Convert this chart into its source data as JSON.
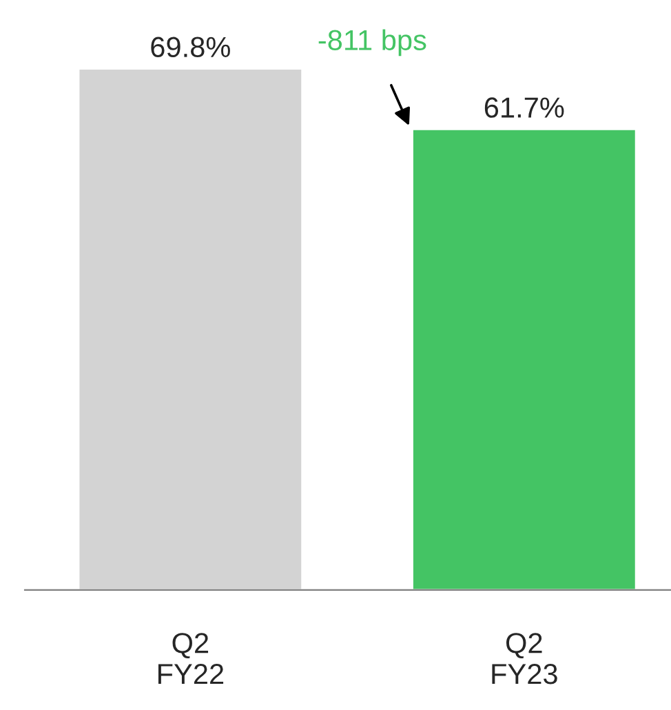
{
  "chart_data": {
    "type": "bar",
    "categories": [
      "Q2\nFY22",
      "Q2\nFY23"
    ],
    "values": [
      69.8,
      61.7
    ],
    "colors": [
      "#d3d3d3",
      "#44c464"
    ],
    "value_labels": [
      "69.8%",
      "61.7%"
    ],
    "annotations": [
      "-811 bps"
    ],
    "grid": false,
    "legend": false
  }
}
